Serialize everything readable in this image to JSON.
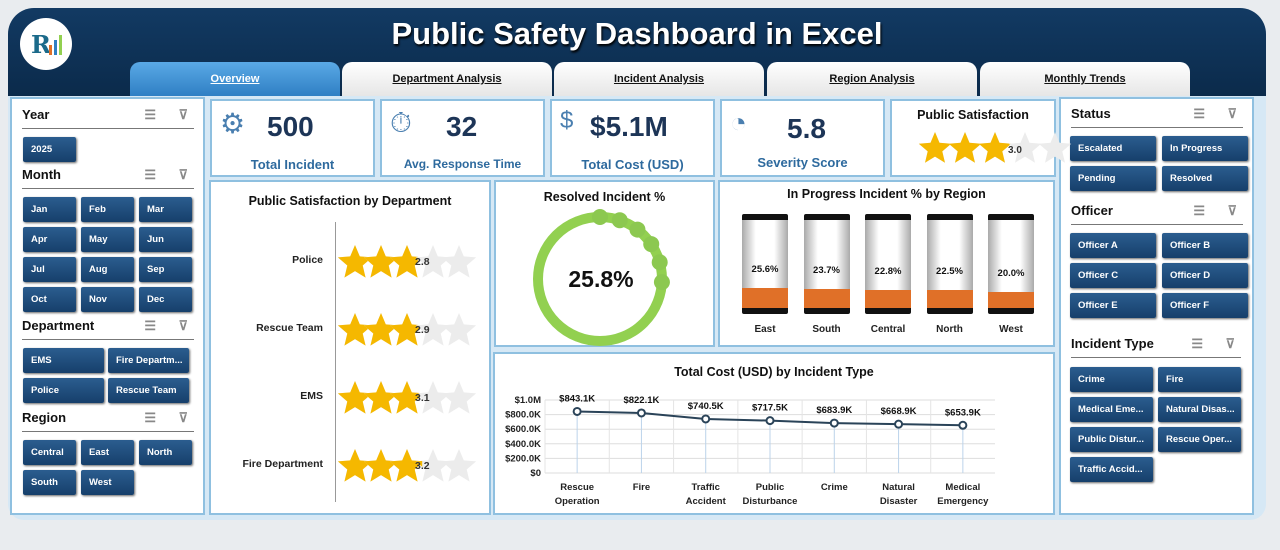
{
  "header": {
    "title": "Public Safety Dashboard in Excel",
    "logo_text": "RK"
  },
  "tabs": [
    {
      "label": "Overview",
      "active": true
    },
    {
      "label": "Department Analysis"
    },
    {
      "label": "Incident Analysis"
    },
    {
      "label": "Region Analysis"
    },
    {
      "label": "Monthly Trends"
    }
  ],
  "slicers_left": [
    {
      "title": "Year",
      "items": [
        "2025"
      ]
    },
    {
      "title": "Month",
      "items": [
        "Jan",
        "Feb",
        "Mar",
        "Apr",
        "May",
        "Jun",
        "Jul",
        "Aug",
        "Sep",
        "Oct",
        "Nov",
        "Dec"
      ]
    },
    {
      "title": "Department",
      "items": [
        "EMS",
        "Fire Departm...",
        "Police",
        "Rescue Team"
      ]
    },
    {
      "title": "Region",
      "items": [
        "Central",
        "East",
        "North",
        "South",
        "West"
      ]
    }
  ],
  "slicers_right": [
    {
      "title": "Status",
      "items": [
        "Escalated",
        "In Progress",
        "Pending",
        "Resolved"
      ]
    },
    {
      "title": "Officer",
      "items": [
        "Officer A",
        "Officer B",
        "Officer C",
        "Officer D",
        "Officer E",
        "Officer F"
      ]
    },
    {
      "title": "Incident Type",
      "items": [
        "Crime",
        "Fire",
        "Medical Eme...",
        "Natural Disas...",
        "Public Distur...",
        "Rescue Oper...",
        "Traffic Accid..."
      ]
    }
  ],
  "kpis": [
    {
      "value": "500",
      "label": "Total Incident",
      "icon": "alert-gear-icon"
    },
    {
      "value": "32",
      "label": "Avg. Response Time",
      "icon": "stopwatch-icon"
    },
    {
      "value": "$5.1M",
      "label": "Total Cost (USD)",
      "icon": "money-hand-icon"
    },
    {
      "value": "5.8",
      "label": "Severity Score",
      "icon": "gauge-icon"
    }
  ],
  "satisfaction": {
    "title": "Public Satisfaction",
    "value": "3.0",
    "rating": 3.0,
    "max": 5
  },
  "colors": {
    "navy": "#0b2a4a",
    "accent": "#2f7fc4",
    "green": "#92d050",
    "orange": "#e07028",
    "gold": "#f5b800",
    "line": "#2a4358"
  },
  "chart_data": [
    {
      "type": "bar",
      "title": "Public Satisfaction by Department",
      "categories": [
        "Police",
        "Rescue Team",
        "EMS",
        "Fire Department"
      ],
      "values": [
        2.8,
        2.9,
        3.1,
        3.2
      ],
      "labels": [
        "2.8",
        "2.9",
        "3.1",
        "3.2"
      ],
      "max": 5
    },
    {
      "type": "pie",
      "title": "Resolved Incident %",
      "values": [
        25.8
      ],
      "label": "25.8%"
    },
    {
      "type": "bar",
      "title": "In Progress Incident % by Region",
      "categories": [
        "East",
        "South",
        "Central",
        "North",
        "West"
      ],
      "values": [
        25.6,
        23.7,
        22.8,
        22.5,
        20.0
      ],
      "labels": [
        "25.6%",
        "23.7%",
        "22.8%",
        "22.5%",
        "20.0%"
      ]
    },
    {
      "type": "line",
      "title": "Total Cost (USD) by Incident Type",
      "categories": [
        "Rescue Operation",
        "Fire",
        "Traffic Accident",
        "Public Disturbance",
        "Crime",
        "Natural Disaster",
        "Medical Emergency"
      ],
      "values": [
        843.1,
        822.1,
        740.5,
        717.5,
        683.9,
        668.9,
        653.9
      ],
      "labels": [
        "$843.1K",
        "$822.1K",
        "$740.5K",
        "$717.5K",
        "$683.9K",
        "$668.9K",
        "$653.9K"
      ],
      "yticks": [
        "$0",
        "$200.0K",
        "$400.0K",
        "$600.0K",
        "$800.0K",
        "$1.0M"
      ],
      "ylim": [
        0,
        1000
      ],
      "grid": true
    }
  ]
}
